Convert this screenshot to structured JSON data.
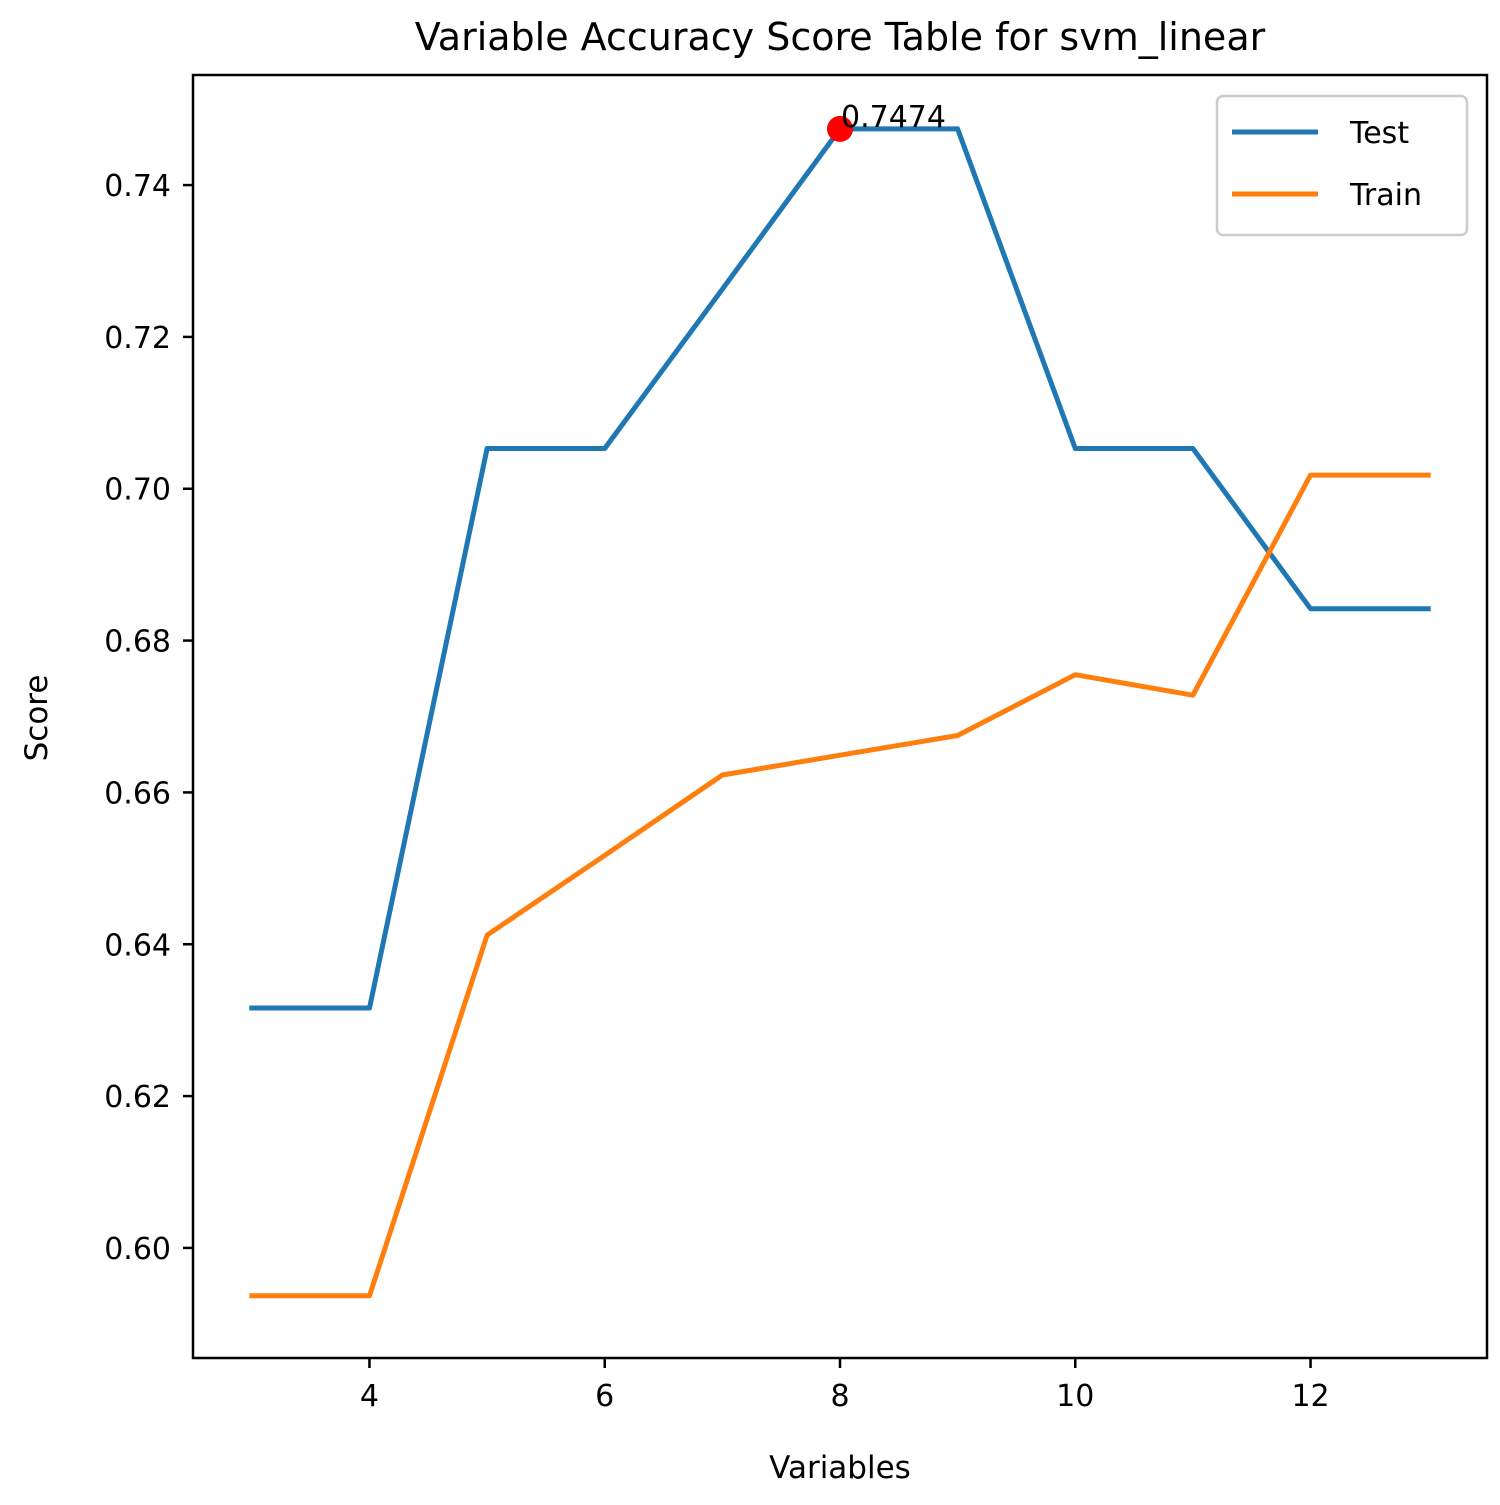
{
  "chart_data": {
    "type": "line",
    "title": "Variable Accuracy Score Table for svm_linear",
    "xlabel": "Variables",
    "ylabel": "Score",
    "xlim": [
      2.5,
      13.5
    ],
    "ylim": [
      0.5855,
      0.7545
    ],
    "x_ticks": [
      4,
      6,
      8,
      10,
      12
    ],
    "y_ticks": [
      0.6,
      0.62,
      0.64,
      0.66,
      0.68,
      0.7,
      0.72,
      0.74
    ],
    "x_tick_labels": [
      "4",
      "6",
      "8",
      "10",
      "12"
    ],
    "y_tick_labels": [
      "0.60",
      "0.62",
      "0.64",
      "0.66",
      "0.68",
      "0.70",
      "0.72",
      "0.74"
    ],
    "x": [
      3,
      4,
      5,
      6,
      7,
      8,
      9,
      10,
      11,
      12,
      13
    ],
    "series": [
      {
        "name": "Test",
        "color": "#1f77b4",
        "values": [
          0.6316,
          0.6316,
          0.7053,
          0.7053,
          0.7263,
          0.7474,
          0.7474,
          0.7053,
          0.7053,
          0.6842,
          0.6842
        ]
      },
      {
        "name": "Train",
        "color": "#ff7f0e",
        "values": [
          0.5937,
          0.5937,
          0.6412,
          0.6517,
          0.6623,
          0.6649,
          0.6675,
          0.6755,
          0.6728,
          0.7018,
          0.7018
        ]
      }
    ],
    "highlight": {
      "x": 8,
      "y": 0.7474,
      "label": "0.7474",
      "color": "#ff0000"
    },
    "legend_position": "top-right",
    "grid": false
  }
}
